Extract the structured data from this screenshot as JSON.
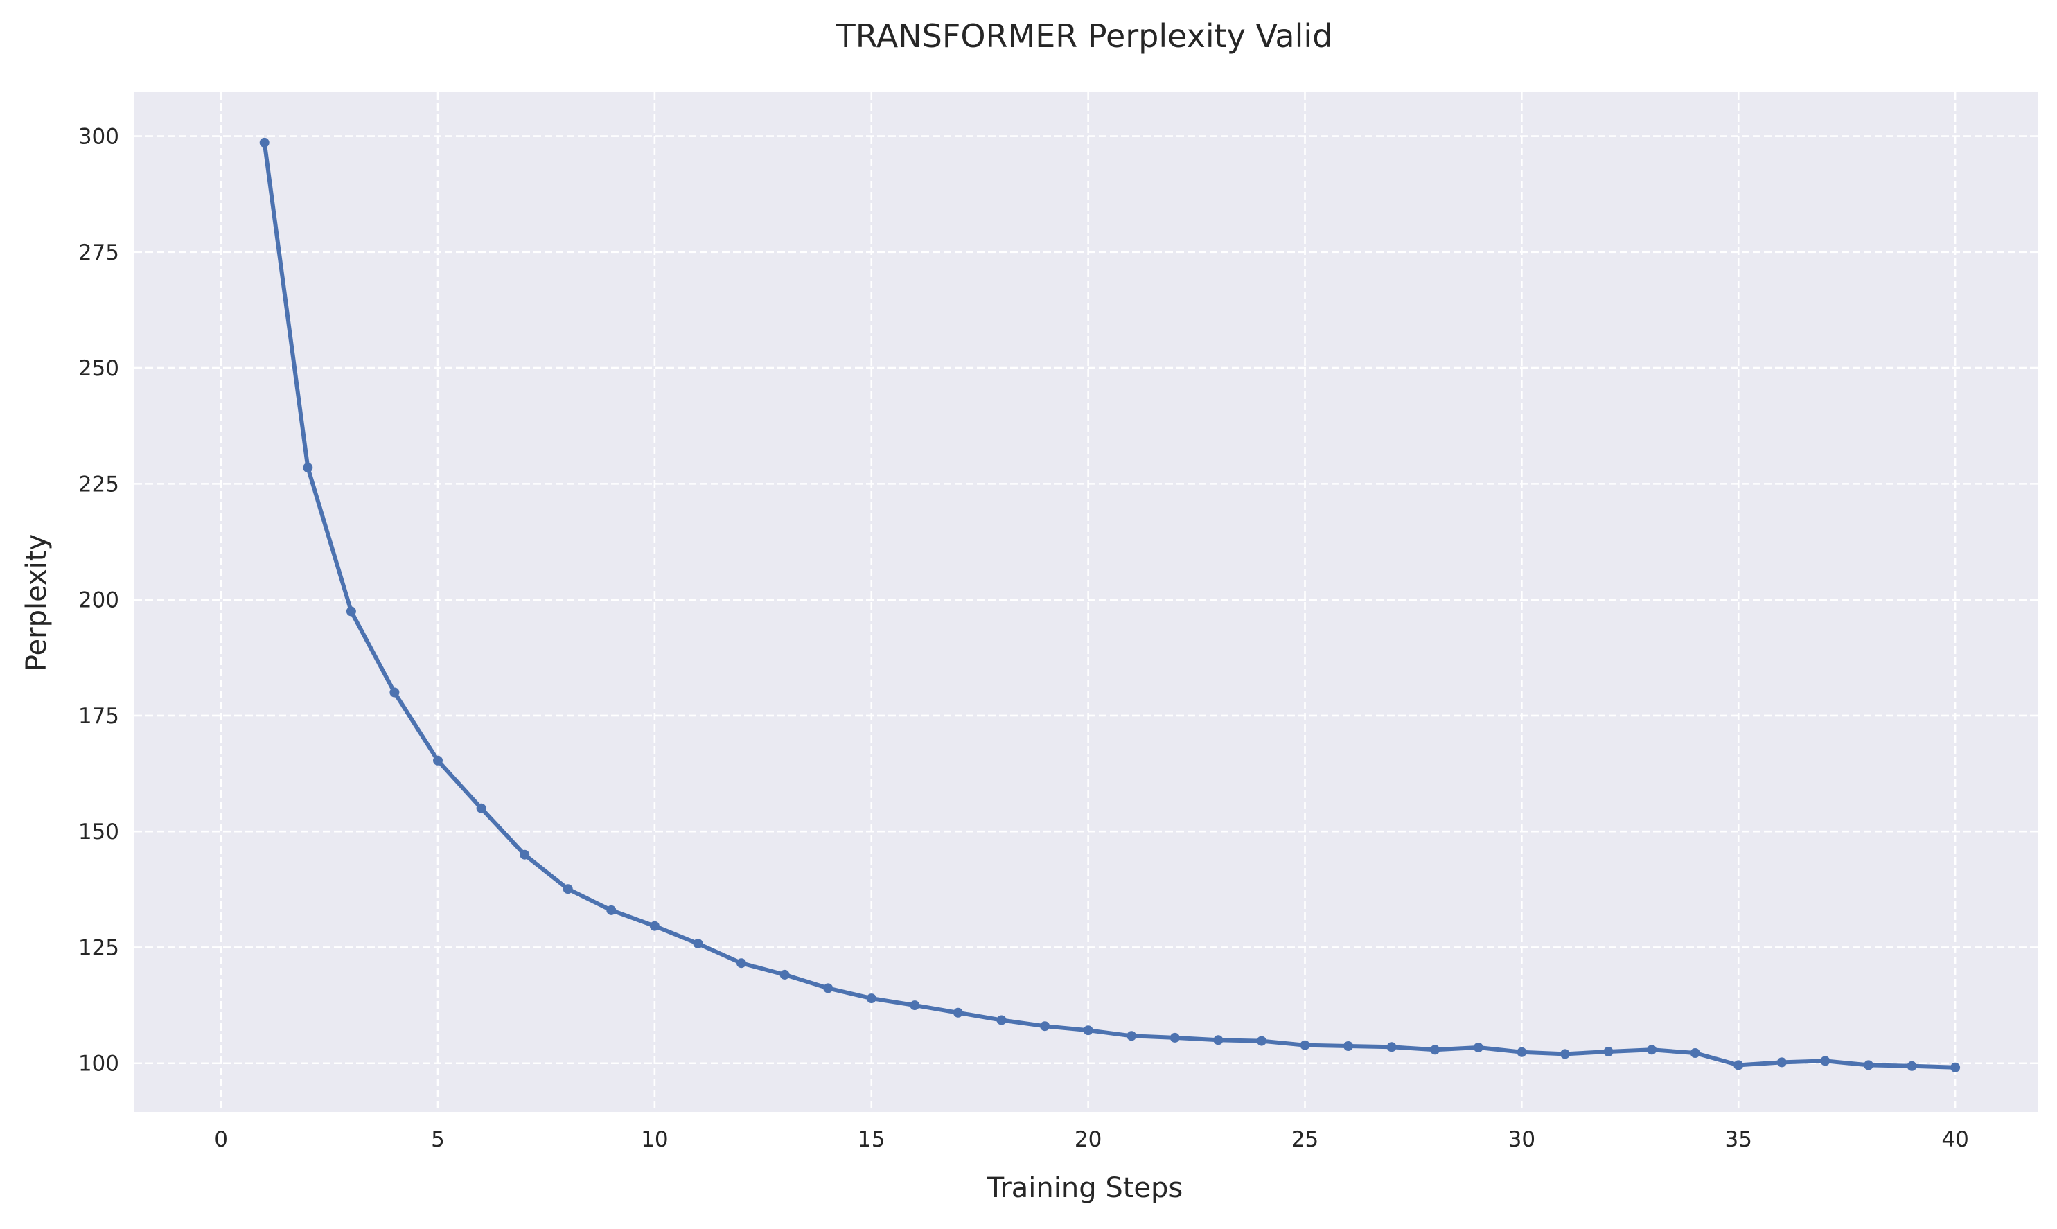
{
  "chart_data": {
    "type": "line",
    "title": "TRANSFORMER Perplexity Valid",
    "xlabel": "Training Steps",
    "ylabel": "Perplexity",
    "xlim": [
      -2,
      41.9
    ],
    "ylim": [
      89.5,
      309.5
    ],
    "grid": true,
    "legend": "none",
    "colors": {
      "background": "#eaeaf2",
      "grid": "#ffffff",
      "series": "#4c72b0"
    },
    "x_ticks": [
      0,
      5,
      10,
      15,
      20,
      25,
      30,
      35,
      40
    ],
    "y_ticks": [
      100,
      125,
      150,
      175,
      200,
      225,
      250,
      275,
      300
    ],
    "x": [
      1,
      2,
      3,
      4,
      5,
      6,
      7,
      8,
      9,
      10,
      11,
      12,
      13,
      14,
      15,
      16,
      17,
      18,
      19,
      20,
      21,
      22,
      23,
      24,
      25,
      26,
      27,
      28,
      29,
      30,
      31,
      32,
      33,
      34,
      35,
      36,
      37,
      38,
      39,
      40
    ],
    "y": [
      298.6,
      228.5,
      197.5,
      180.0,
      165.3,
      155.0,
      145.0,
      137.6,
      133.0,
      129.6,
      125.8,
      121.6,
      119.1,
      116.2,
      114.0,
      112.5,
      110.9,
      109.3,
      108.0,
      107.1,
      105.9,
      105.5,
      105.0,
      104.8,
      103.9,
      103.7,
      103.5,
      102.9,
      103.4,
      102.4,
      102.0,
      102.5,
      102.9,
      102.2,
      99.6,
      100.2,
      100.5,
      99.6,
      99.4,
      99.1
    ]
  }
}
